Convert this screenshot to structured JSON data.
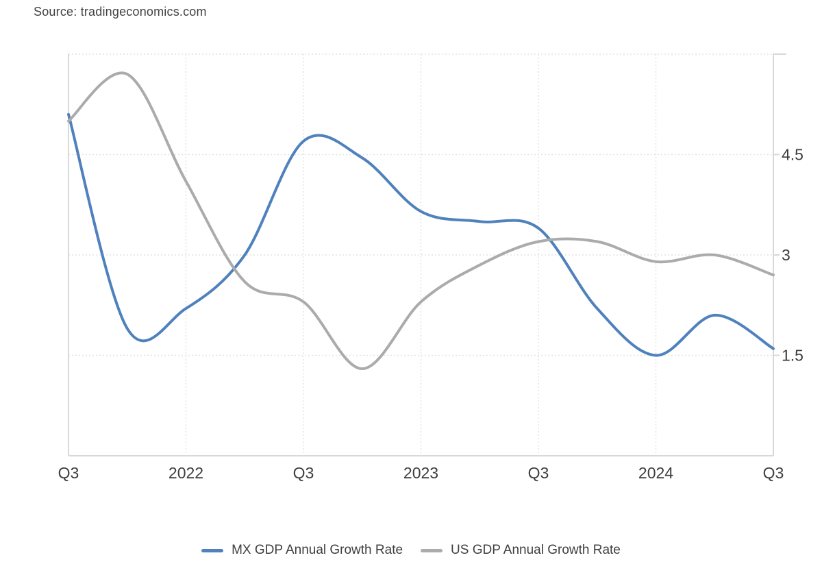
{
  "source_note": "Source: tradingeconomics.com",
  "chart_data": {
    "type": "line",
    "title": "",
    "categories": [
      "2021 Q3",
      "2021 Q4",
      "2022 Q1",
      "2022 Q2",
      "2022 Q3",
      "2022 Q4",
      "2023 Q1",
      "2023 Q2",
      "2023 Q3",
      "2023 Q4",
      "2024 Q1",
      "2024 Q2",
      "2024 Q3"
    ],
    "x_ticks": [
      {
        "index": 0,
        "label": "Q3"
      },
      {
        "index": 2,
        "label": "2022"
      },
      {
        "index": 4,
        "label": "Q3"
      },
      {
        "index": 6,
        "label": "2023"
      },
      {
        "index": 8,
        "label": "Q3"
      },
      {
        "index": 10,
        "label": "2024"
      },
      {
        "index": 12,
        "label": "Q3"
      }
    ],
    "series": [
      {
        "name": "MX GDP Annual Growth Rate",
        "color": "#4F81BD",
        "values": [
          5.1,
          1.9,
          2.2,
          3.0,
          4.7,
          4.45,
          3.65,
          3.5,
          3.4,
          2.2,
          1.5,
          2.1,
          1.6
        ]
      },
      {
        "name": "US GDP Annual Growth Rate",
        "color": "#ABABAB",
        "values": [
          5.0,
          5.7,
          4.1,
          2.6,
          2.3,
          1.3,
          2.3,
          2.85,
          3.2,
          3.2,
          2.9,
          3.0,
          2.7
        ]
      }
    ],
    "y_axis": {
      "side": "right",
      "min": 0,
      "max": 6,
      "tick_values": [
        4.5,
        3,
        1.5
      ],
      "tick_labels": [
        "4.5",
        "3",
        "1.5"
      ],
      "gridline_values": [
        6,
        4.5,
        3,
        1.5
      ]
    },
    "xlabel": "",
    "ylabel": "",
    "grid": "dotted",
    "legend_position": "bottom"
  },
  "colors": {
    "axis_line": "#D8D8D8",
    "gridline": "#E3E3E3",
    "tick_text": "#3D3D3D",
    "legend_text": "#3F3F3F",
    "source_text": "#424242"
  }
}
